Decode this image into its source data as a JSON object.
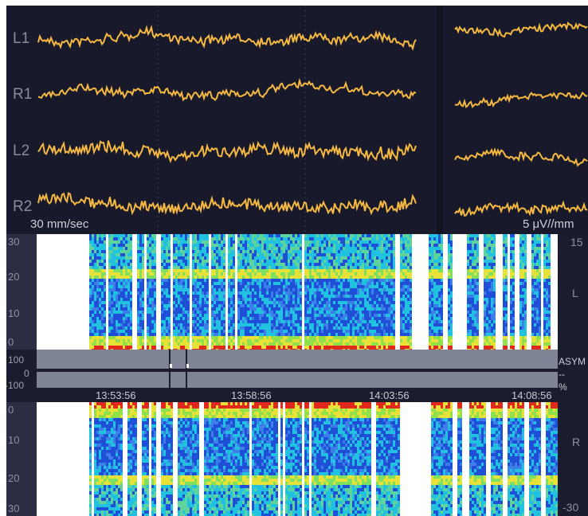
{
  "eeg": {
    "channels": [
      "L1",
      "R1",
      "L2",
      "R2"
    ],
    "sweep_speed": "30 mm/sec",
    "sensitivity": "5 μV//mm"
  },
  "dsa_left": {
    "y_ticks": [
      "30",
      "20",
      "10",
      "0"
    ],
    "side_top": "15",
    "side_label": "L"
  },
  "asym": {
    "ticks": [
      "100",
      "0",
      "-100"
    ],
    "label": "ASYM",
    "value": "--",
    "unit": "%"
  },
  "timeline": {
    "times": [
      "13:53:56",
      "13:58:56",
      "14:03:56",
      "14:08:56"
    ]
  },
  "dsa_right": {
    "y_ticks": [
      "0",
      "10",
      "20",
      "30"
    ],
    "side_label": "R",
    "side_bottom": "-30"
  },
  "colors": {
    "trace": "#f5b841",
    "background": "#181a2c",
    "artifact": "#ffffff",
    "low_power": "#1f4fd6",
    "mid_power": "#21c2e0",
    "high_power": "#e8e238",
    "peak_power": "#e0281c"
  }
}
